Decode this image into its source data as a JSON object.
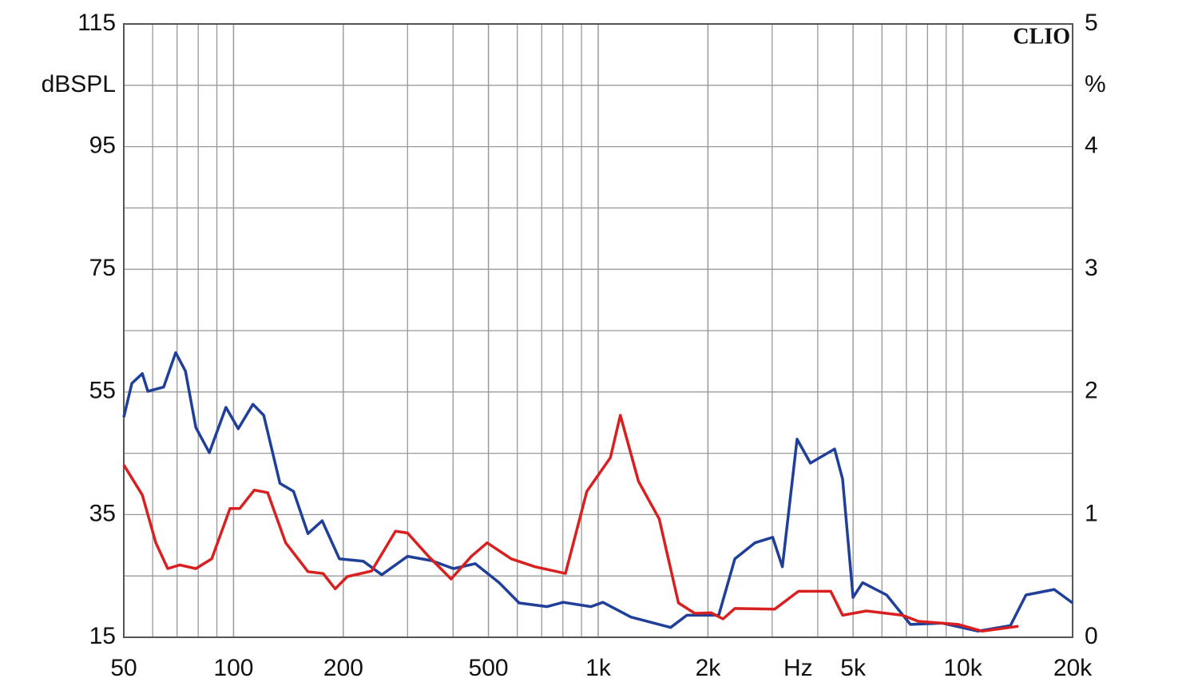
{
  "chart_data": {
    "type": "line",
    "brand": "CLIO",
    "ylabel": "dBSPL",
    "y2label": "%",
    "xlabel": "Hz",
    "xscale": "log",
    "grid": true,
    "xlim": [
      50,
      20000
    ],
    "xticks": [
      50,
      100,
      200,
      500,
      {
        "value": 1000,
        "label": "1k"
      },
      {
        "value": 2000,
        "label": "2k"
      },
      {
        "value": 5000,
        "label": "5k"
      },
      {
        "value": 10000,
        "label": "10k"
      },
      {
        "value": 20000,
        "label": "20k"
      }
    ],
    "ylim": [
      15,
      115
    ],
    "yticks": [
      15,
      35,
      55,
      75,
      95,
      115
    ],
    "y2lim": [
      0,
      5
    ],
    "y2ticks": [
      0,
      1,
      2,
      3,
      4,
      5
    ],
    "series": [
      {
        "name": "blue",
        "color": "#1f3f99",
        "x": [
          50,
          52.6,
          56.2,
          58.2,
          64.3,
          69.4,
          73.8,
          78.8,
          85.8,
          95.3,
          103,
          113,
          121,
          134,
          146,
          160,
          175,
          195,
          227,
          255,
          300,
          349,
          401,
          460,
          535,
          607,
          724,
          802,
          955,
          1030,
          1230,
          1580,
          1750,
          2140,
          2370,
          2690,
          3010,
          3200,
          3510,
          3820,
          4450,
          4680,
          5000,
          5310,
          6180,
          7180,
          8790,
          11000,
          13500,
          14900,
          17800,
          20000
        ],
        "values": [
          50.9,
          56.4,
          58.0,
          55.1,
          55.8,
          61.4,
          58.4,
          49.2,
          45.1,
          52.5,
          49.0,
          53.0,
          51.2,
          40.1,
          38.8,
          31.9,
          34.0,
          27.8,
          27.4,
          25.2,
          28.2,
          27.5,
          26.2,
          27.0,
          23.9,
          20.6,
          20.0,
          20.7,
          20.0,
          20.7,
          18.3,
          16.6,
          18.6,
          18.6,
          27.8,
          30.4,
          31.3,
          26.5,
          47.3,
          43.4,
          45.7,
          40.8,
          21.5,
          23.9,
          21.9,
          17.1,
          17.3,
          16.0,
          16.9,
          21.9,
          22.8,
          20.6
        ]
      },
      {
        "name": "red",
        "color": "#d92020",
        "x": [
          50,
          56.2,
          61.2,
          66.0,
          71.2,
          78.8,
          87.1,
          97.8,
          104,
          114,
          124,
          139,
          160,
          176,
          190,
          205,
          239,
          278,
          300,
          340,
          395,
          449,
          496,
          577,
          671,
          813,
          931,
          1080,
          1150,
          1290,
          1470,
          1660,
          1840,
          2040,
          2200,
          2370,
          3050,
          3540,
          4340,
          4680,
          5440,
          6820,
          7550,
          9720,
          11300,
          14200
        ],
        "values": [
          43.1,
          38.2,
          30.4,
          26.2,
          26.8,
          26.2,
          27.8,
          36.0,
          36.0,
          39.0,
          38.6,
          30.4,
          25.7,
          25.4,
          22.9,
          24.9,
          25.8,
          32.3,
          32.0,
          28.4,
          24.5,
          28.2,
          30.4,
          27.8,
          26.5,
          25.4,
          38.8,
          44.3,
          51.2,
          40.4,
          34.3,
          20.6,
          18.9,
          19.0,
          18.0,
          19.7,
          19.6,
          22.5,
          22.5,
          18.6,
          19.3,
          18.6,
          17.6,
          17.1,
          16.0,
          16.8
        ]
      }
    ]
  }
}
